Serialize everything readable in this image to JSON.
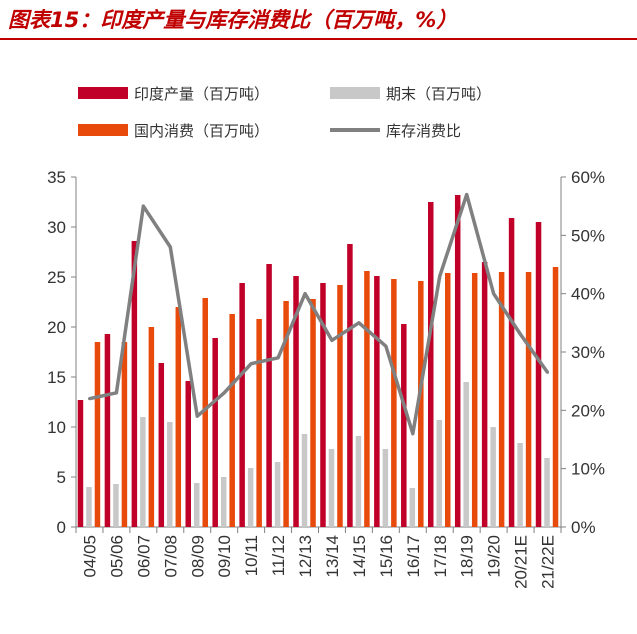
{
  "title": "图表15：印度产量与库存消费比（百万吨，%）",
  "colors": {
    "production": "#c00028",
    "ending": "#c8c8c8",
    "consumption": "#e84a0c",
    "ratio": "#808080",
    "title": "#c00000",
    "axis": "#808080"
  },
  "chart_data": {
    "type": "bar",
    "categories": [
      "04/05",
      "05/06",
      "06/07",
      "07/08",
      "08/09",
      "09/10",
      "10/11",
      "11/12",
      "12/13",
      "13/14",
      "14/15",
      "15/16",
      "16/17",
      "17/18",
      "18/19",
      "19/20",
      "20/21E",
      "21/22E"
    ],
    "series": [
      {
        "name": "印度产量（百万吨）",
        "type": "bar",
        "axis": "left",
        "values": [
          12.7,
          19.3,
          28.6,
          16.4,
          14.6,
          18.9,
          24.4,
          26.3,
          25.1,
          24.4,
          28.3,
          25.1,
          20.3,
          32.5,
          33.2,
          26.5,
          30.9,
          30.5
        ]
      },
      {
        "name": "期末（百万吨）",
        "type": "bar",
        "axis": "left",
        "values": [
          4.0,
          4.3,
          11.0,
          10.5,
          4.4,
          5.0,
          5.9,
          6.5,
          9.3,
          7.8,
          9.1,
          7.8,
          3.9,
          10.7,
          14.5,
          10.0,
          8.4,
          6.9
        ]
      },
      {
        "name": "国内消费（百万吨）",
        "type": "bar",
        "axis": "left",
        "values": [
          18.5,
          18.5,
          20.0,
          22.0,
          22.9,
          21.3,
          20.8,
          22.6,
          22.8,
          24.2,
          25.6,
          24.8,
          24.6,
          25.4,
          25.4,
          25.5,
          25.5,
          26.0
        ]
      },
      {
        "name": "库存消费比",
        "type": "line",
        "axis": "right",
        "values": [
          22,
          23,
          55,
          48,
          19,
          23,
          28,
          29,
          40,
          32,
          35,
          31,
          16,
          43,
          57,
          40,
          33,
          26.5
        ]
      }
    ],
    "y_left": {
      "ticks": [
        "0",
        "5",
        "10",
        "15",
        "20",
        "25",
        "30",
        "35"
      ],
      "range": [
        0,
        35
      ]
    },
    "y_right": {
      "ticks": [
        "0%",
        "10%",
        "20%",
        "30%",
        "40%",
        "50%",
        "60%"
      ],
      "range": [
        0,
        60
      ]
    },
    "legend_position": "top"
  }
}
